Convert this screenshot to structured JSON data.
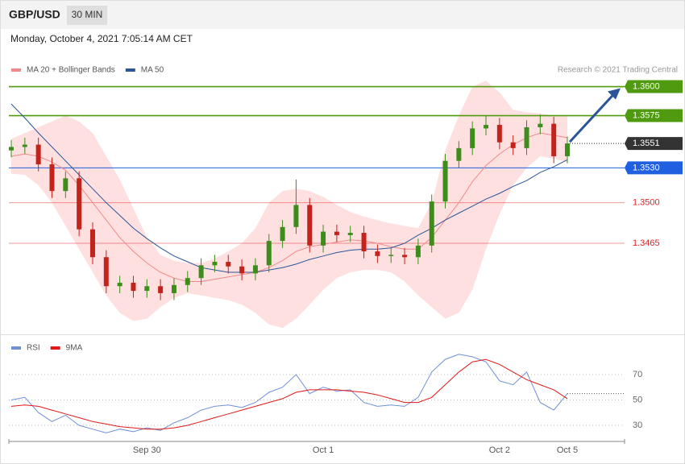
{
  "header": {
    "symbol": "GBP/USD",
    "interval": "30 MIN",
    "timestamp": "Monday, October 4, 2021 7:05:14 AM CET"
  },
  "chart_data": [
    {
      "type": "candlestick",
      "credit": "Research © 2021 Trading Central",
      "up_color": "#3d8c1c",
      "down_color": "#c4231c",
      "ylim": [
        1.339,
        1.3633
      ],
      "x_labels": [
        {
          "label": "Sep 30",
          "at": 10
        },
        {
          "label": "Oct 1",
          "at": 23
        },
        {
          "label": "Oct 2",
          "at": 36
        },
        {
          "label": "Oct 5",
          "at": 41
        }
      ],
      "open": [
        1.3545,
        1.3548,
        1.355,
        1.3533,
        1.351,
        1.3521,
        1.3477,
        1.3453,
        1.3428,
        1.3431,
        1.3424,
        1.3428,
        1.3422,
        1.3429,
        1.3435,
        1.3446,
        1.3449,
        1.3445,
        1.3439,
        1.3446,
        1.3467,
        1.3479,
        1.3498,
        1.3463,
        1.3475,
        1.3472,
        1.3474,
        1.3458,
        1.3454,
        1.3455,
        1.3453,
        1.3463,
        1.3501,
        1.3536,
        1.3547,
        1.3564,
        1.3567,
        1.3552,
        1.3547,
        1.3565,
        1.3568,
        1.354
      ],
      "high": [
        1.3554,
        1.3556,
        1.3556,
        1.3539,
        1.3527,
        1.3527,
        1.3483,
        1.3459,
        1.3437,
        1.3437,
        1.3434,
        1.3434,
        1.3435,
        1.3441,
        1.3452,
        1.3455,
        1.3455,
        1.3451,
        1.3452,
        1.3473,
        1.3485,
        1.352,
        1.3504,
        1.3481,
        1.3481,
        1.348,
        1.348,
        1.3464,
        1.3461,
        1.3461,
        1.3469,
        1.3507,
        1.3542,
        1.3553,
        1.357,
        1.3575,
        1.3573,
        1.3558,
        1.3571,
        1.3576,
        1.3574,
        1.3557
      ],
      "low": [
        1.3539,
        1.3542,
        1.3527,
        1.3504,
        1.3504,
        1.3471,
        1.3447,
        1.3422,
        1.3422,
        1.3418,
        1.3418,
        1.3416,
        1.3416,
        1.3423,
        1.3429,
        1.344,
        1.3439,
        1.3433,
        1.3433,
        1.344,
        1.3461,
        1.3473,
        1.3457,
        1.3457,
        1.3466,
        1.3466,
        1.3452,
        1.3448,
        1.3448,
        1.3447,
        1.3447,
        1.3457,
        1.3495,
        1.353,
        1.3541,
        1.3558,
        1.3546,
        1.3541,
        1.3541,
        1.3559,
        1.3534,
        1.3534
      ],
      "close": [
        1.3548,
        1.355,
        1.3533,
        1.351,
        1.3521,
        1.3477,
        1.3453,
        1.3428,
        1.3431,
        1.3424,
        1.3428,
        1.3422,
        1.3429,
        1.3435,
        1.3446,
        1.3449,
        1.3445,
        1.3439,
        1.3446,
        1.3467,
        1.3479,
        1.3498,
        1.3463,
        1.3475,
        1.3472,
        1.3474,
        1.3458,
        1.3454,
        1.3455,
        1.3453,
        1.3463,
        1.3501,
        1.3536,
        1.3547,
        1.3564,
        1.3567,
        1.3552,
        1.3547,
        1.3565,
        1.3568,
        1.354,
        1.3551
      ],
      "series": [
        {
          "name": "MA 20 + Bollinger Bands",
          "color": "#f08a8a",
          "values": [
            1.354,
            1.3542,
            1.354,
            1.3535,
            1.3528,
            1.3515,
            1.35,
            1.3485,
            1.347,
            1.3458,
            1.3448,
            1.344,
            1.3435,
            1.3432,
            1.3432,
            1.3434,
            1.3436,
            1.3438,
            1.344,
            1.3444,
            1.345,
            1.3458,
            1.3462,
            1.3464,
            1.3466,
            1.3468,
            1.3467,
            1.3465,
            1.3462,
            1.346,
            1.346,
            1.347,
            1.3485,
            1.35,
            1.3518,
            1.3532,
            1.3542,
            1.355,
            1.3556,
            1.356,
            1.3558,
            1.3556
          ],
          "upper": [
            1.3555,
            1.356,
            1.3565,
            1.357,
            1.3575,
            1.357,
            1.356,
            1.354,
            1.352,
            1.3495,
            1.347,
            1.3455,
            1.345,
            1.3448,
            1.3448,
            1.3452,
            1.3458,
            1.3465,
            1.3478,
            1.35,
            1.351,
            1.3512,
            1.351,
            1.3505,
            1.3498,
            1.3492,
            1.3488,
            1.3485,
            1.3482,
            1.348,
            1.3478,
            1.35,
            1.3545,
            1.3575,
            1.36,
            1.3605,
            1.3595,
            1.358,
            1.3578,
            1.3577,
            1.3575,
            1.3575
          ],
          "lower": [
            1.3525,
            1.3524,
            1.3515,
            1.35,
            1.348,
            1.346,
            1.344,
            1.342,
            1.3405,
            1.3398,
            1.34,
            1.341,
            1.3418,
            1.3422,
            1.342,
            1.3418,
            1.3416,
            1.3412,
            1.3405,
            1.3395,
            1.3392,
            1.34,
            1.3412,
            1.3425,
            1.3435,
            1.344,
            1.3442,
            1.3442,
            1.344,
            1.3432,
            1.342,
            1.341,
            1.34,
            1.3405,
            1.3425,
            1.346,
            1.349,
            1.3515,
            1.353,
            1.354,
            1.3538,
            1.3535
          ]
        },
        {
          "name": "MA 50",
          "color": "#2b5597",
          "values": [
            1.3585,
            1.3573,
            1.356,
            1.3548,
            1.3536,
            1.3524,
            1.3512,
            1.35,
            1.3489,
            1.3478,
            1.3469,
            1.3461,
            1.3454,
            1.3449,
            1.3444,
            1.3442,
            1.344,
            1.344,
            1.344,
            1.3442,
            1.3444,
            1.3447,
            1.3451,
            1.3454,
            1.3457,
            1.3459,
            1.346,
            1.346,
            1.3461,
            1.3465,
            1.3472,
            1.3478,
            1.3485,
            1.3491,
            1.3497,
            1.3503,
            1.3508,
            1.3514,
            1.3519,
            1.3526,
            1.3531,
            1.3537
          ]
        }
      ],
      "levels": [
        {
          "value": 1.36,
          "label": "1.3600",
          "color": "#4f9a0e",
          "line": "solid",
          "badge": true
        },
        {
          "value": 1.3575,
          "label": "1.3575",
          "color": "#4f9a0e",
          "line": "solid",
          "badge": true
        },
        {
          "value": 1.3551,
          "label": "1.3551",
          "color": "#333333",
          "line": "dotted",
          "badge": true
        },
        {
          "value": 1.353,
          "label": "1.3530",
          "color": "#1f5fe0",
          "line": "solid",
          "badge": true
        },
        {
          "value": 1.35,
          "label": "1.3500",
          "color": "#e02020",
          "line": "solid",
          "badge": false
        },
        {
          "value": 1.3465,
          "label": "1.3465",
          "color": "#e02020",
          "line": "solid",
          "badge": false
        }
      ]
    },
    {
      "type": "line",
      "ylim": [
        19.2,
        92.2
      ],
      "yticks": [
        30,
        50,
        70
      ],
      "grid": true,
      "series": [
        {
          "name": "RSI",
          "color": "#6f8fd8",
          "values": [
            50,
            52,
            40,
            33,
            38,
            30,
            27,
            24,
            27,
            25,
            28,
            26,
            32,
            36,
            42,
            45,
            46,
            44,
            48,
            56,
            60,
            70,
            55,
            60,
            57,
            58,
            48,
            45,
            46,
            45,
            52,
            72,
            82,
            86,
            84,
            80,
            65,
            62,
            72,
            48,
            42,
            55
          ]
        },
        {
          "name": "9MA",
          "color": "#e01818",
          "values": [
            45,
            46,
            45,
            42,
            39,
            36,
            33,
            31,
            29,
            28,
            27,
            27,
            28,
            30,
            33,
            36,
            39,
            42,
            45,
            48,
            51,
            56,
            58,
            58,
            58,
            57,
            56,
            54,
            51,
            48,
            48,
            52,
            62,
            72,
            80,
            82,
            78,
            72,
            66,
            62,
            58,
            51
          ]
        }
      ]
    }
  ]
}
